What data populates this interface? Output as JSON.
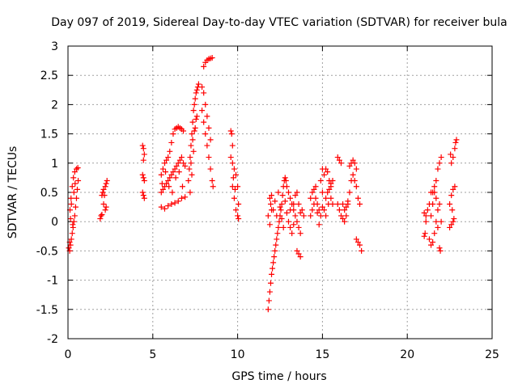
{
  "chart_data": {
    "type": "scatter",
    "title": "Day 097 of 2019, Sidereal Day-to-day VTEC variation (SDTVAR) for receiver bula",
    "xlabel": "GPS time / hours",
    "ylabel": "SDTVAR / TECUs",
    "xlim": [
      0,
      25
    ],
    "ylim": [
      -2,
      3
    ],
    "x_ticks": [
      0,
      5,
      10,
      15,
      20,
      25
    ],
    "x_tick_labels": [
      "0",
      "5",
      "10",
      "15",
      "20",
      "25"
    ],
    "y_ticks": [
      -2,
      -1.5,
      -1,
      -0.5,
      0,
      0.5,
      1,
      1.5,
      2,
      2.5,
      3
    ],
    "y_tick_labels": [
      "-2",
      "-1.5",
      "-1",
      "-0.5",
      "0",
      "0.5",
      "1",
      "1.5",
      "2",
      "2.5",
      "3"
    ],
    "grid": true,
    "marker": "+",
    "series": [
      {
        "name": "SDTVAR",
        "color": "#ff0000",
        "points": [
          [
            0.05,
            -0.45
          ],
          [
            0.1,
            -0.5
          ],
          [
            0.15,
            -0.4
          ],
          [
            0.2,
            -0.3
          ],
          [
            0.25,
            -0.2
          ],
          [
            0.3,
            -0.1
          ],
          [
            0.35,
            0.0
          ],
          [
            0.4,
            0.1
          ],
          [
            0.45,
            0.25
          ],
          [
            0.5,
            0.4
          ],
          [
            0.55,
            0.55
          ],
          [
            0.6,
            0.7
          ],
          [
            0.12,
            0.2
          ],
          [
            0.18,
            0.4
          ],
          [
            0.25,
            0.6
          ],
          [
            0.32,
            0.75
          ],
          [
            0.4,
            0.85
          ],
          [
            0.5,
            0.9
          ],
          [
            0.58,
            0.92
          ],
          [
            0.2,
            0.3
          ],
          [
            0.28,
            -0.05
          ],
          [
            0.35,
            0.5
          ],
          [
            0.42,
            0.65
          ],
          [
            0.1,
            -0.35
          ],
          [
            0.15,
            0.05
          ],
          [
            1.9,
            0.05
          ],
          [
            1.95,
            0.1
          ],
          [
            2.0,
            0.45
          ],
          [
            2.05,
            0.5
          ],
          [
            2.1,
            0.55
          ],
          [
            2.15,
            0.45
          ],
          [
            2.2,
            0.6
          ],
          [
            2.25,
            0.65
          ],
          [
            2.3,
            0.7
          ],
          [
            2.2,
            0.2
          ],
          [
            2.25,
            0.25
          ],
          [
            2.0,
            0.12
          ],
          [
            2.1,
            0.3
          ],
          [
            4.4,
            1.3
          ],
          [
            4.45,
            1.25
          ],
          [
            4.5,
            1.15
          ],
          [
            4.4,
            0.8
          ],
          [
            4.45,
            0.75
          ],
          [
            4.5,
            0.7
          ],
          [
            4.4,
            0.5
          ],
          [
            4.45,
            0.45
          ],
          [
            4.5,
            0.4
          ],
          [
            4.45,
            1.05
          ],
          [
            5.5,
            0.25
          ],
          [
            5.7,
            0.22
          ],
          [
            5.9,
            0.27
          ],
          [
            6.1,
            0.3
          ],
          [
            6.3,
            0.32
          ],
          [
            6.5,
            0.35
          ],
          [
            6.7,
            0.4
          ],
          [
            6.9,
            0.42
          ],
          [
            5.5,
            0.8
          ],
          [
            5.6,
            0.9
          ],
          [
            5.7,
            1.0
          ],
          [
            5.8,
            1.05
          ],
          [
            5.9,
            1.1
          ],
          [
            6.0,
            1.2
          ],
          [
            6.1,
            1.35
          ],
          [
            6.2,
            1.5
          ],
          [
            6.3,
            1.58
          ],
          [
            6.4,
            1.6
          ],
          [
            6.5,
            1.62
          ],
          [
            6.6,
            1.6
          ],
          [
            6.7,
            1.58
          ],
          [
            6.8,
            1.55
          ],
          [
            5.5,
            0.5
          ],
          [
            5.6,
            0.55
          ],
          [
            5.7,
            0.6
          ],
          [
            5.8,
            0.65
          ],
          [
            5.9,
            0.7
          ],
          [
            6.0,
            0.75
          ],
          [
            6.1,
            0.8
          ],
          [
            6.2,
            0.85
          ],
          [
            6.3,
            0.9
          ],
          [
            6.4,
            0.95
          ],
          [
            6.5,
            1.0
          ],
          [
            6.6,
            1.05
          ],
          [
            6.7,
            1.1
          ],
          [
            6.8,
            1.0
          ],
          [
            5.55,
            0.65
          ],
          [
            5.75,
            0.85
          ],
          [
            5.95,
            0.6
          ],
          [
            6.15,
            0.5
          ],
          [
            6.35,
            0.75
          ],
          [
            6.55,
            0.85
          ],
          [
            6.75,
            0.6
          ],
          [
            6.9,
            0.95
          ],
          [
            7.1,
            0.7
          ],
          [
            7.15,
            0.9
          ],
          [
            7.2,
            1.1
          ],
          [
            7.25,
            1.3
          ],
          [
            7.3,
            1.5
          ],
          [
            7.35,
            1.7
          ],
          [
            7.4,
            1.9
          ],
          [
            7.45,
            2.0
          ],
          [
            7.5,
            2.1
          ],
          [
            7.55,
            2.2
          ],
          [
            7.6,
            2.25
          ],
          [
            7.65,
            2.3
          ],
          [
            7.7,
            2.35
          ],
          [
            7.2,
            0.5
          ],
          [
            7.3,
            0.8
          ],
          [
            7.4,
            1.2
          ],
          [
            7.5,
            1.6
          ],
          [
            7.6,
            1.8
          ],
          [
            7.35,
            1.4
          ],
          [
            7.45,
            1.55
          ],
          [
            7.55,
            1.75
          ],
          [
            7.25,
            1.0
          ],
          [
            7.9,
            2.3
          ],
          [
            8.0,
            2.2
          ],
          [
            8.1,
            2.0
          ],
          [
            8.2,
            1.8
          ],
          [
            8.3,
            1.6
          ],
          [
            8.4,
            1.4
          ],
          [
            8.0,
            2.65
          ],
          [
            8.1,
            2.72
          ],
          [
            8.2,
            2.76
          ],
          [
            8.3,
            2.78
          ],
          [
            8.4,
            2.79
          ],
          [
            8.5,
            2.8
          ],
          [
            7.9,
            1.9
          ],
          [
            8.0,
            1.7
          ],
          [
            8.1,
            1.5
          ],
          [
            8.2,
            1.3
          ],
          [
            8.3,
            1.1
          ],
          [
            8.4,
            0.9
          ],
          [
            8.5,
            0.7
          ],
          [
            8.55,
            0.6
          ],
          [
            9.6,
            1.55
          ],
          [
            9.65,
            1.5
          ],
          [
            9.7,
            1.3
          ],
          [
            9.6,
            1.1
          ],
          [
            9.7,
            1.0
          ],
          [
            9.8,
            0.9
          ],
          [
            9.9,
            0.8
          ],
          [
            10.0,
            0.6
          ],
          [
            10.05,
            0.3
          ],
          [
            9.7,
            0.6
          ],
          [
            9.8,
            0.4
          ],
          [
            9.9,
            0.2
          ],
          [
            10.0,
            0.1
          ],
          [
            10.05,
            0.05
          ],
          [
            9.75,
            0.75
          ],
          [
            9.85,
            0.55
          ],
          [
            11.8,
            -1.5
          ],
          [
            11.85,
            -1.35
          ],
          [
            11.9,
            -1.2
          ],
          [
            11.95,
            -1.05
          ],
          [
            12.0,
            -0.9
          ],
          [
            12.05,
            -0.8
          ],
          [
            12.1,
            -0.7
          ],
          [
            12.15,
            -0.6
          ],
          [
            12.2,
            -0.5
          ],
          [
            12.25,
            -0.4
          ],
          [
            12.3,
            -0.3
          ],
          [
            12.35,
            -0.2
          ],
          [
            12.4,
            -0.1
          ],
          [
            12.45,
            0.0
          ],
          [
            12.5,
            0.1
          ],
          [
            12.55,
            0.2
          ],
          [
            12.6,
            0.3
          ],
          [
            12.65,
            0.45
          ],
          [
            12.7,
            0.6
          ],
          [
            12.75,
            0.7
          ],
          [
            12.8,
            0.75
          ],
          [
            12.85,
            0.7
          ],
          [
            12.9,
            0.6
          ],
          [
            11.9,
            0.4
          ],
          [
            11.95,
            0.3
          ],
          [
            12.0,
            0.45
          ],
          [
            12.1,
            0.2
          ],
          [
            12.2,
            0.35
          ],
          [
            12.3,
            0.1
          ],
          [
            12.4,
            0.5
          ],
          [
            12.5,
            0.25
          ],
          [
            12.6,
            0.05
          ],
          [
            12.7,
            -0.1
          ],
          [
            12.8,
            0.35
          ],
          [
            12.9,
            0.15
          ],
          [
            11.8,
            0.1
          ],
          [
            11.9,
            -0.05
          ],
          [
            12.0,
            0.2
          ],
          [
            13.0,
            0.5
          ],
          [
            13.1,
            0.4
          ],
          [
            13.2,
            0.3
          ],
          [
            13.3,
            0.2
          ],
          [
            13.4,
            0.1
          ],
          [
            13.5,
            0.0
          ],
          [
            13.6,
            -0.1
          ],
          [
            13.7,
            -0.2
          ],
          [
            13.0,
            0.0
          ],
          [
            13.1,
            -0.1
          ],
          [
            13.2,
            -0.2
          ],
          [
            13.3,
            0.3
          ],
          [
            13.4,
            0.45
          ],
          [
            13.5,
            0.5
          ],
          [
            13.6,
            0.3
          ],
          [
            13.7,
            0.15
          ],
          [
            13.8,
            0.2
          ],
          [
            13.5,
            -0.5
          ],
          [
            13.6,
            -0.55
          ],
          [
            13.7,
            -0.6
          ],
          [
            13.1,
            0.2
          ],
          [
            13.3,
            -0.05
          ],
          [
            13.9,
            0.1
          ],
          [
            14.3,
            0.4
          ],
          [
            14.4,
            0.5
          ],
          [
            14.5,
            0.55
          ],
          [
            14.6,
            0.4
          ],
          [
            14.7,
            0.3
          ],
          [
            14.8,
            0.2
          ],
          [
            14.9,
            0.1
          ],
          [
            15.0,
            0.5
          ],
          [
            15.1,
            0.8
          ],
          [
            15.0,
            0.9
          ],
          [
            14.9,
            0.7
          ],
          [
            14.3,
            0.1
          ],
          [
            14.4,
            0.2
          ],
          [
            14.5,
            0.3
          ],
          [
            14.6,
            0.6
          ],
          [
            14.7,
            0.15
          ],
          [
            14.8,
            -0.05
          ],
          [
            15.0,
            0.25
          ],
          [
            15.2,
            0.4
          ],
          [
            15.3,
            0.5
          ],
          [
            15.4,
            0.55
          ],
          [
            15.5,
            0.6
          ],
          [
            15.6,
            0.3
          ],
          [
            15.2,
            0.9
          ],
          [
            15.3,
            0.85
          ],
          [
            15.4,
            0.7
          ],
          [
            15.5,
            0.65
          ],
          [
            15.6,
            0.7
          ],
          [
            15.1,
            0.2
          ],
          [
            15.2,
            0.1
          ],
          [
            15.35,
            0.3
          ],
          [
            15.5,
            0.4
          ],
          [
            15.9,
            1.1
          ],
          [
            16.0,
            1.05
          ],
          [
            16.1,
            1.0
          ],
          [
            15.9,
            0.3
          ],
          [
            16.0,
            0.2
          ],
          [
            16.1,
            0.1
          ],
          [
            16.2,
            0.05
          ],
          [
            16.3,
            0.0
          ],
          [
            16.4,
            0.1
          ],
          [
            16.5,
            0.3
          ],
          [
            16.6,
            0.5
          ],
          [
            16.7,
            0.7
          ],
          [
            16.8,
            0.8
          ],
          [
            16.9,
            0.7
          ],
          [
            17.0,
            0.6
          ],
          [
            17.1,
            0.4
          ],
          [
            17.2,
            0.3
          ],
          [
            16.6,
            0.95
          ],
          [
            16.7,
            1.0
          ],
          [
            16.8,
            1.05
          ],
          [
            16.9,
            1.0
          ],
          [
            17.0,
            0.9
          ],
          [
            17.0,
            -0.3
          ],
          [
            17.1,
            -0.35
          ],
          [
            17.2,
            -0.4
          ],
          [
            17.3,
            -0.5
          ],
          [
            16.4,
            0.25
          ],
          [
            16.5,
            0.35
          ],
          [
            16.2,
            0.3
          ],
          [
            16.3,
            0.2
          ],
          [
            21.0,
            -0.25
          ],
          [
            21.05,
            -0.2
          ],
          [
            21.1,
            0.0
          ],
          [
            21.2,
            0.2
          ],
          [
            21.0,
            0.15
          ],
          [
            21.1,
            0.1
          ],
          [
            21.3,
            -0.3
          ],
          [
            21.4,
            -0.4
          ],
          [
            21.5,
            -0.35
          ],
          [
            21.6,
            -0.2
          ],
          [
            21.7,
            0.0
          ],
          [
            21.8,
            0.2
          ],
          [
            21.9,
            0.3
          ],
          [
            21.4,
            0.1
          ],
          [
            21.5,
            0.3
          ],
          [
            21.6,
            0.5
          ],
          [
            21.7,
            0.7
          ],
          [
            21.8,
            0.9
          ],
          [
            21.9,
            1.0
          ],
          [
            22.0,
            1.1
          ],
          [
            21.5,
            0.5
          ],
          [
            21.6,
            0.6
          ],
          [
            21.7,
            0.4
          ],
          [
            21.8,
            -0.1
          ],
          [
            21.9,
            -0.45
          ],
          [
            21.95,
            -0.5
          ],
          [
            22.0,
            0.0
          ],
          [
            21.3,
            0.3
          ],
          [
            21.4,
            0.5
          ],
          [
            22.5,
            -0.1
          ],
          [
            22.6,
            -0.05
          ],
          [
            22.7,
            0.0
          ],
          [
            22.5,
            0.3
          ],
          [
            22.6,
            0.45
          ],
          [
            22.7,
            0.55
          ],
          [
            22.8,
            0.6
          ],
          [
            22.6,
            1.0
          ],
          [
            22.7,
            1.1
          ],
          [
            22.8,
            1.25
          ],
          [
            22.85,
            1.35
          ],
          [
            22.9,
            1.4
          ],
          [
            22.55,
            1.15
          ],
          [
            22.65,
            0.2
          ],
          [
            22.75,
            0.05
          ]
        ]
      }
    ]
  }
}
